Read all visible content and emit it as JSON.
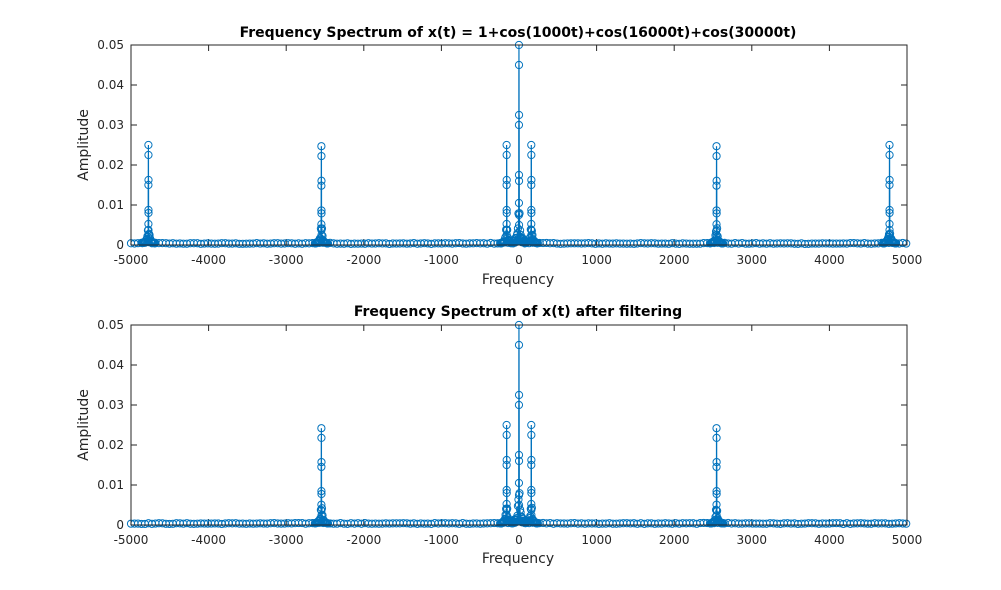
{
  "colors": {
    "series": "#0072BD",
    "axes": "#262626",
    "background": "#ffffff"
  },
  "chart_data": [
    {
      "type": "stem",
      "title": "Frequency Spectrum of x(t) = 1+cos(1000t)+cos(16000t)+cos(30000t)",
      "xlabel": "Frequency",
      "ylabel": "Amplitude",
      "xlim": [
        -5000,
        5000
      ],
      "ylim": [
        0,
        0.05
      ],
      "xticks": [
        "-5000",
        "-4000",
        "-3000",
        "-2000",
        "-1000",
        "0",
        "1000",
        "2000",
        "3000",
        "4000",
        "5000"
      ],
      "yticks": [
        "0",
        "0.01",
        "0.02",
        "0.03",
        "0.04",
        "0.05"
      ],
      "marker": "open-circle",
      "peaks": [
        {
          "x": -4775,
          "y": 0.025
        },
        {
          "x": -2546,
          "y": 0.0247
        },
        {
          "x": -159,
          "y": 0.025
        },
        {
          "x": 0,
          "y": 0.05
        },
        {
          "x": 159,
          "y": 0.025
        },
        {
          "x": 2546,
          "y": 0.0247
        },
        {
          "x": 4775,
          "y": 0.025
        }
      ]
    },
    {
      "type": "stem",
      "title": "Frequency Spectrum of x(t) after filtering",
      "xlabel": "Frequency",
      "ylabel": "Amplitude",
      "xlim": [
        -5000,
        5000
      ],
      "ylim": [
        0,
        0.05
      ],
      "xticks": [
        "-5000",
        "-4000",
        "-3000",
        "-2000",
        "-1000",
        "0",
        "1000",
        "2000",
        "3000",
        "4000",
        "5000"
      ],
      "yticks": [
        "0",
        "0.01",
        "0.02",
        "0.03",
        "0.04",
        "0.05"
      ],
      "marker": "open-circle",
      "peaks": [
        {
          "x": -2546,
          "y": 0.0242
        },
        {
          "x": -159,
          "y": 0.025
        },
        {
          "x": 0,
          "y": 0.05
        },
        {
          "x": 159,
          "y": 0.025
        },
        {
          "x": 2546,
          "y": 0.0242
        }
      ]
    }
  ]
}
